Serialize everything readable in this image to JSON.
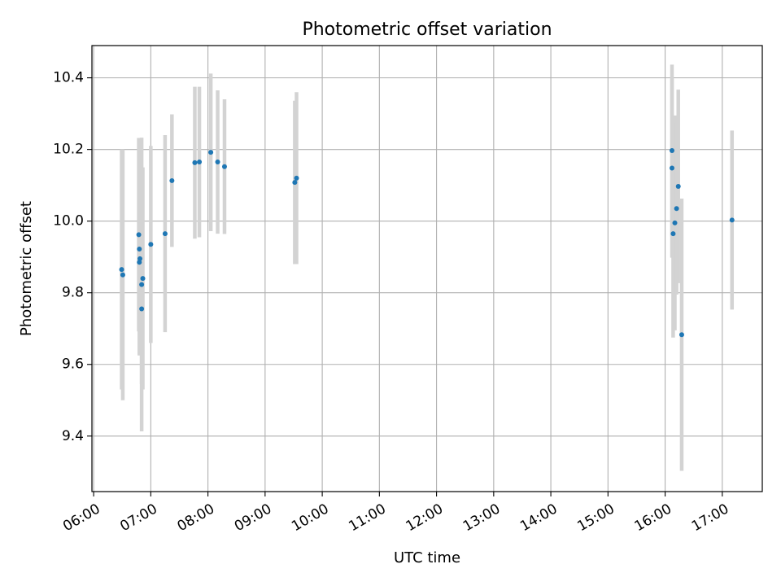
{
  "chart_data": {
    "type": "scatter",
    "title": "Photometric offset variation",
    "xlabel": "UTC time",
    "ylabel": "Photometric offset",
    "x_unit": "hours UTC",
    "xlim": [
      5.97,
      17.7
    ],
    "ylim": [
      9.245,
      10.49
    ],
    "x_ticks": [
      {
        "value": 6,
        "label": "06:00"
      },
      {
        "value": 7,
        "label": "07:00"
      },
      {
        "value": 8,
        "label": "08:00"
      },
      {
        "value": 9,
        "label": "09:00"
      },
      {
        "value": 10,
        "label": "10:00"
      },
      {
        "value": 11,
        "label": "11:00"
      },
      {
        "value": 12,
        "label": "12:00"
      },
      {
        "value": 13,
        "label": "13:00"
      },
      {
        "value": 14,
        "label": "14:00"
      },
      {
        "value": 15,
        "label": "15:00"
      },
      {
        "value": 16,
        "label": "16:00"
      },
      {
        "value": 17,
        "label": "17:00"
      }
    ],
    "y_ticks": [
      {
        "value": 9.4,
        "label": "9.4"
      },
      {
        "value": 9.6,
        "label": "9.6"
      },
      {
        "value": 9.8,
        "label": "9.8"
      },
      {
        "value": 10.0,
        "label": "10.0"
      },
      {
        "value": 10.2,
        "label": "10.2"
      },
      {
        "value": 10.4,
        "label": "10.4"
      }
    ],
    "grid": true,
    "point_color": "#1f77b4",
    "errorbar_color": "#d3d3d3",
    "points": [
      {
        "x": 6.49,
        "y": 9.865,
        "err": 0.335
      },
      {
        "x": 6.51,
        "y": 9.85,
        "err": 0.35
      },
      {
        "x": 6.79,
        "y": 9.962,
        "err": 0.27
      },
      {
        "x": 6.8,
        "y": 9.922,
        "err": 0.23
      },
      {
        "x": 6.81,
        "y": 9.895,
        "err": 0.2
      },
      {
        "x": 6.8,
        "y": 9.885,
        "err": 0.26
      },
      {
        "x": 6.84,
        "y": 9.823,
        "err": 0.41
      },
      {
        "x": 6.86,
        "y": 9.84,
        "err": 0.31
      },
      {
        "x": 6.84,
        "y": 9.755,
        "err": 0.21
      },
      {
        "x": 7.0,
        "y": 9.935,
        "err": 0.275
      },
      {
        "x": 7.25,
        "y": 9.965,
        "err": 0.275
      },
      {
        "x": 7.37,
        "y": 10.113,
        "err": 0.185
      },
      {
        "x": 7.77,
        "y": 10.163,
        "err": 0.212
      },
      {
        "x": 7.85,
        "y": 10.165,
        "err": 0.21
      },
      {
        "x": 8.05,
        "y": 10.192,
        "err": 0.22
      },
      {
        "x": 8.17,
        "y": 10.165,
        "err": 0.2
      },
      {
        "x": 8.29,
        "y": 10.152,
        "err": 0.188
      },
      {
        "x": 9.52,
        "y": 10.108,
        "err": 0.228
      },
      {
        "x": 9.55,
        "y": 10.12,
        "err": 0.24
      },
      {
        "x": 16.12,
        "y": 10.197,
        "err": 0.24
      },
      {
        "x": 16.12,
        "y": 10.148,
        "err": 0.25
      },
      {
        "x": 16.14,
        "y": 9.965,
        "err": 0.29
      },
      {
        "x": 16.17,
        "y": 9.995,
        "err": 0.3
      },
      {
        "x": 16.2,
        "y": 10.035,
        "err": 0.24
      },
      {
        "x": 16.23,
        "y": 10.097,
        "err": 0.27
      },
      {
        "x": 16.29,
        "y": 9.683,
        "err": 0.38
      },
      {
        "x": 17.17,
        "y": 10.003,
        "err": 0.25
      }
    ]
  }
}
